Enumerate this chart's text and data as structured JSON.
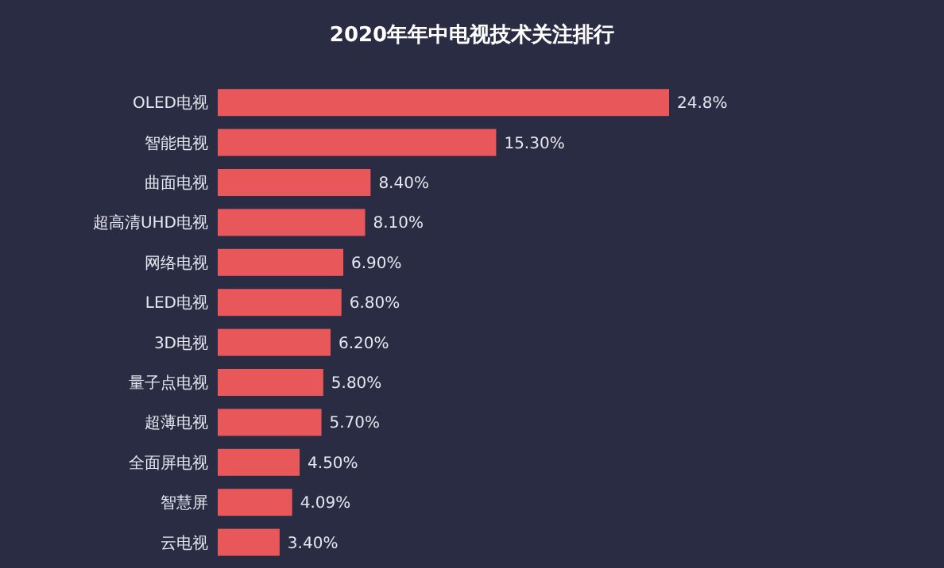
{
  "chart_data": {
    "type": "bar",
    "orientation": "horizontal",
    "title": "2020年年中电视技术关注排行",
    "categories": [
      "OLED电视",
      "智能电视",
      "曲面电视",
      "超高清UHD电视",
      "网络电视",
      "LED电视",
      "3D电视",
      "量子点电视",
      "超薄电视",
      "全面屏电视",
      "智慧屏",
      "云电视"
    ],
    "values": [
      24.8,
      15.3,
      8.4,
      8.1,
      6.9,
      6.8,
      6.2,
      5.8,
      5.7,
      4.5,
      4.09,
      3.4
    ],
    "value_labels": [
      "24.8%",
      "15.30%",
      "8.40%",
      "8.10%",
      "6.90%",
      "6.80%",
      "6.20%",
      "5.80%",
      "5.70%",
      "4.50%",
      "4.09%",
      "3.40%"
    ],
    "color": "#e8585a"
  }
}
